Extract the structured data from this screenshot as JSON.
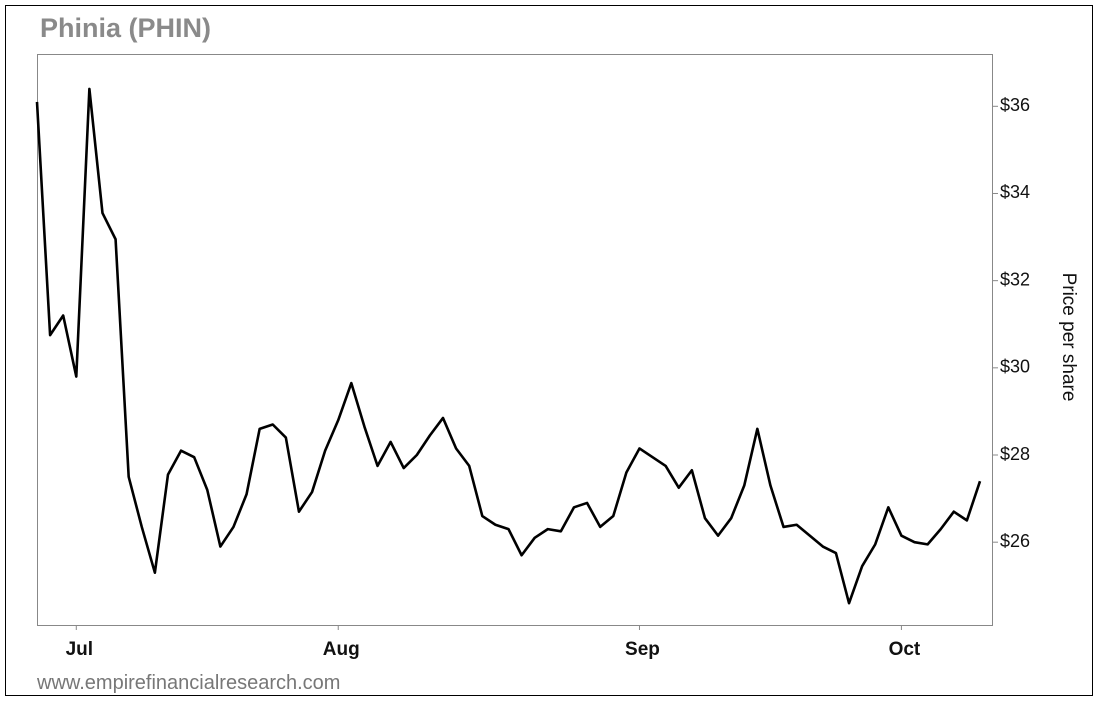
{
  "chart_data": {
    "type": "line",
    "title": "Phinia (PHIN)",
    "y_axis_label": "Price per share",
    "source": "www.empirefinancialresearch.com",
    "categories": [
      null,
      null,
      null,
      "Jul",
      null,
      null,
      null,
      null,
      null,
      null,
      null,
      null,
      null,
      null,
      null,
      null,
      null,
      null,
      null,
      null,
      null,
      null,
      null,
      "Aug",
      null,
      null,
      null,
      null,
      null,
      null,
      null,
      null,
      null,
      null,
      null,
      null,
      null,
      null,
      null,
      null,
      null,
      null,
      null,
      null,
      null,
      null,
      "Sep",
      null,
      null,
      null,
      null,
      null,
      null,
      null,
      null,
      null,
      null,
      null,
      null,
      null,
      null,
      null,
      null,
      null,
      null,
      null,
      "Oct",
      null,
      null,
      null,
      null,
      null,
      null
    ],
    "values": [
      36.1,
      30.75,
      31.2,
      29.8,
      36.4,
      33.55,
      32.95,
      27.5,
      26.35,
      25.3,
      27.55,
      28.1,
      27.95,
      27.2,
      25.9,
      26.35,
      27.1,
      28.6,
      28.7,
      28.4,
      26.7,
      27.15,
      28.1,
      28.8,
      29.65,
      28.65,
      27.75,
      28.3,
      27.7,
      28.0,
      28.45,
      28.85,
      28.15,
      27.75,
      26.6,
      26.4,
      26.3,
      25.7,
      26.1,
      26.3,
      26.25,
      26.8,
      26.9,
      26.35,
      26.6,
      27.6,
      28.15,
      27.95,
      27.75,
      27.25,
      27.65,
      26.55,
      26.15,
      26.55,
      27.3,
      28.6,
      27.3,
      26.35,
      26.4,
      26.15,
      25.9,
      25.75,
      24.6,
      25.45,
      25.95,
      26.8,
      26.15,
      26.0,
      25.95,
      26.3,
      26.7,
      26.5,
      27.4
    ],
    "color": "#000000",
    "ylim": [
      24.1,
      37.2
    ],
    "yticks": [
      {
        "value": 26,
        "label": "$26"
      },
      {
        "value": 28,
        "label": "$28"
      },
      {
        "value": 30,
        "label": "$30"
      },
      {
        "value": 32,
        "label": "$32"
      },
      {
        "value": 34,
        "label": "$34"
      },
      {
        "value": 36,
        "label": "$36"
      }
    ],
    "grid": false
  }
}
